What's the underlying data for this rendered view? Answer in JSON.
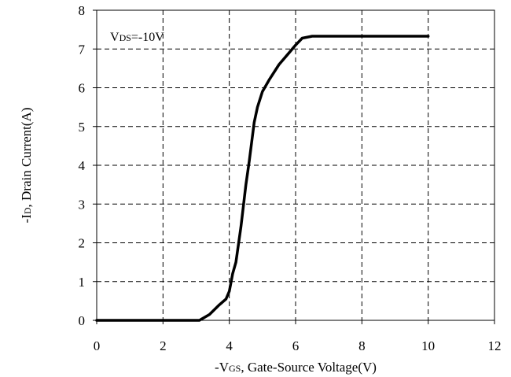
{
  "chart_data": {
    "type": "line",
    "title": "",
    "xlabel": {
      "prefix": "-V",
      "sub": "GS",
      "suffix": ", Gate-Source Voltage(V)"
    },
    "ylabel": {
      "prefix": "-I",
      "sub": "D",
      "suffix": ", Drain Current(A)"
    },
    "xlim": [
      0,
      12
    ],
    "ylim": [
      0,
      8
    ],
    "xticks": [
      0,
      2,
      4,
      6,
      8,
      10,
      12
    ],
    "yticks": [
      0,
      1,
      2,
      3,
      4,
      5,
      6,
      7,
      8
    ],
    "grid": true,
    "annotation": {
      "prefix": "V",
      "sub": "DS",
      "suffix": "=-10V"
    },
    "series": [
      {
        "x": [
          0,
          3.1,
          3.4,
          3.7,
          3.9,
          4.0,
          4.1,
          4.2,
          4.35,
          4.5,
          4.6,
          4.75,
          4.85,
          5.0,
          5.2,
          5.5,
          5.8,
          6.0,
          6.2,
          6.5,
          7.0,
          8.0,
          9.0,
          10.0
        ],
        "y": [
          0,
          0,
          0.15,
          0.4,
          0.55,
          0.75,
          1.2,
          1.5,
          2.4,
          3.5,
          4.1,
          5.1,
          5.5,
          5.9,
          6.2,
          6.6,
          6.9,
          7.1,
          7.28,
          7.33,
          7.33,
          7.33,
          7.33,
          7.33
        ],
        "color": "#000000"
      }
    ]
  }
}
